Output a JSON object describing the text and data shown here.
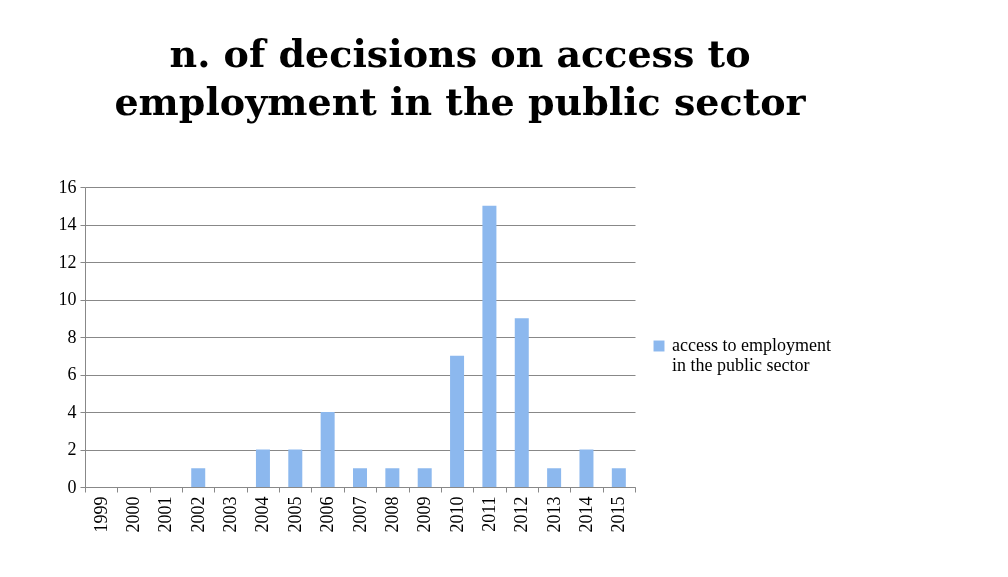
{
  "chart_data": {
    "type": "bar",
    "title": "n. of decisions on access to employment in the public sector",
    "categories": [
      "1999",
      "2000",
      "2001",
      "2002",
      "2003",
      "2004",
      "2005",
      "2006",
      "2007",
      "2008",
      "2009",
      "2010",
      "2011",
      "2012",
      "2013",
      "2014",
      "2015"
    ],
    "series": [
      {
        "name": "access to employment in the public sector",
        "color": "#8cb8ee",
        "values": [
          0,
          0,
          0,
          1,
          0,
          2,
          2,
          4,
          1,
          1,
          1,
          7,
          15,
          9,
          1,
          2,
          1
        ]
      }
    ],
    "ylim": [
      0,
      16
    ],
    "yticks": [
      0,
      2,
      4,
      6,
      8,
      10,
      12,
      14,
      16
    ],
    "grid": "y",
    "legend": "right"
  }
}
